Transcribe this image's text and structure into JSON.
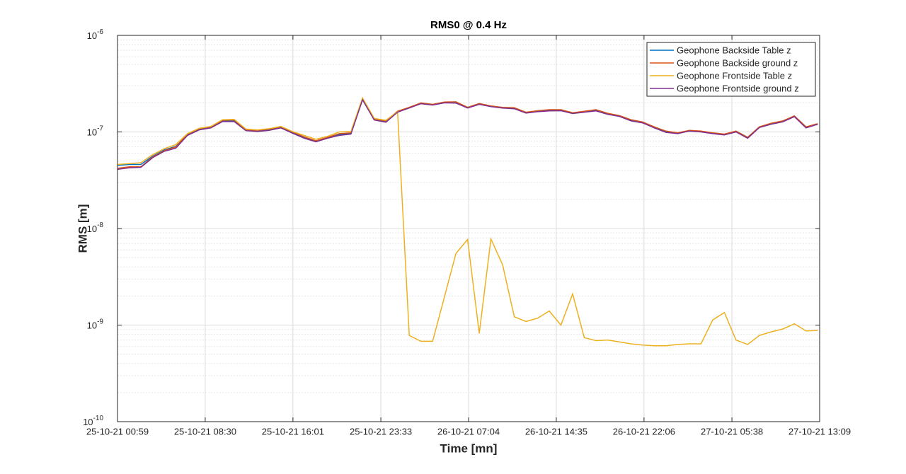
{
  "chart_data": {
    "type": "line",
    "title": "RMS0 @ 0.4 Hz",
    "x_label": "Time [mn]",
    "y_label": "RMS [m]",
    "log_y": true,
    "grid": true,
    "legend": "northeast",
    "x": [
      "2021-10-25T00:59",
      "2021-10-25T01:59",
      "2021-10-25T02:59",
      "2021-10-25T03:59",
      "2021-10-25T04:59",
      "2021-10-25T05:59",
      "2021-10-25T06:59",
      "2021-10-25T07:59",
      "2021-10-25T08:59",
      "2021-10-25T09:59",
      "2021-10-25T10:59",
      "2021-10-25T11:59",
      "2021-10-25T12:59",
      "2021-10-25T13:59",
      "2021-10-25T14:59",
      "2021-10-25T15:59",
      "2021-10-25T16:59",
      "2021-10-25T17:59",
      "2021-10-25T18:59",
      "2021-10-25T19:59",
      "2021-10-25T20:59",
      "2021-10-25T21:59",
      "2021-10-25T22:59",
      "2021-10-25T23:59",
      "2021-10-26T00:59",
      "2021-10-26T01:59",
      "2021-10-26T02:59",
      "2021-10-26T03:59",
      "2021-10-26T04:59",
      "2021-10-26T05:59",
      "2021-10-26T06:59",
      "2021-10-26T07:59",
      "2021-10-26T08:59",
      "2021-10-26T09:59",
      "2021-10-26T10:59",
      "2021-10-26T11:59",
      "2021-10-26T12:59",
      "2021-10-26T13:59",
      "2021-10-26T14:59",
      "2021-10-26T15:59",
      "2021-10-26T16:59",
      "2021-10-26T17:59",
      "2021-10-26T18:59",
      "2021-10-26T19:59",
      "2021-10-26T20:59",
      "2021-10-26T21:59",
      "2021-10-26T22:59",
      "2021-10-26T23:59",
      "2021-10-27T00:59",
      "2021-10-27T01:59",
      "2021-10-27T02:59",
      "2021-10-27T03:59",
      "2021-10-27T04:59",
      "2021-10-27T05:59",
      "2021-10-27T06:59",
      "2021-10-27T07:59",
      "2021-10-27T08:59",
      "2021-10-27T09:59",
      "2021-10-27T10:59",
      "2021-10-27T11:59",
      "2021-10-27T12:59"
    ],
    "xlim": [
      "2021-10-25T00:59",
      "2021-10-27T13:09"
    ],
    "xticks": [
      {
        "value": "2021-10-25T00:59",
        "label": "25-10-21 00:59"
      },
      {
        "value": "2021-10-25T08:30",
        "label": "25-10-21 08:30"
      },
      {
        "value": "2021-10-25T16:01",
        "label": "25-10-21 16:01"
      },
      {
        "value": "2021-10-25T23:33",
        "label": "25-10-21 23:33"
      },
      {
        "value": "2021-10-26T07:04",
        "label": "26-10-21 07:04"
      },
      {
        "value": "2021-10-26T14:35",
        "label": "26-10-21 14:35"
      },
      {
        "value": "2021-10-26T22:06",
        "label": "26-10-21 22:06"
      },
      {
        "value": "2021-10-27T05:38",
        "label": "27-10-21 05:38"
      },
      {
        "value": "2021-10-27T13:09",
        "label": "27-10-21 13:09"
      }
    ],
    "ylim": [
      1e-10,
      1e-06
    ],
    "yticks": [
      {
        "value": 1e-10,
        "label": "10",
        "exponent": "-10"
      },
      {
        "value": 1e-09,
        "label": "10",
        "exponent": "-9"
      },
      {
        "value": 1e-08,
        "label": "10",
        "exponent": "-8"
      },
      {
        "value": 1e-07,
        "label": "10",
        "exponent": "-7"
      },
      {
        "value": 1e-06,
        "label": "10",
        "exponent": "-6"
      }
    ],
    "series": [
      {
        "name": "Geophone Backside Table z",
        "color": "#0072BD",
        "values": [
          4.5e-08,
          4.6e-08,
          4.6e-08,
          5.6e-08,
          6.5e-08,
          7.1e-08,
          9.4e-08,
          1.07e-07,
          1.12e-07,
          1.3e-07,
          1.3e-07,
          1.05e-07,
          1.03e-07,
          1.06e-07,
          1.12e-07,
          9.9e-08,
          8.8e-08,
          8e-08,
          8.7e-08,
          9.4e-08,
          9.7e-08,
          2.19e-07,
          1.34e-07,
          1.28e-07,
          1.62e-07,
          1.79e-07,
          1.98e-07,
          1.91e-07,
          2.01e-07,
          2e-07,
          1.79e-07,
          1.95e-07,
          1.85e-07,
          1.79e-07,
          1.76e-07,
          1.59e-07,
          1.64e-07,
          1.67e-07,
          1.67e-07,
          1.56e-07,
          1.62e-07,
          1.67e-07,
          1.54e-07,
          1.46e-07,
          1.32e-07,
          1.26e-07,
          1.12e-07,
          1e-07,
          9.7e-08,
          1.03e-07,
          1.01e-07,
          9.7e-08,
          9.4e-08,
          1.02e-07,
          8.8e-08,
          1.12e-07,
          1.21e-07,
          1.28e-07,
          1.46e-07,
          1.12e-07,
          1.21e-07
        ]
      },
      {
        "name": "Geophone Backside ground z",
        "color": "#D95319",
        "values": [
          4.2e-08,
          4.35e-08,
          4.35e-08,
          5.5e-08,
          6.4e-08,
          7e-08,
          9.5e-08,
          1.08e-07,
          1.13e-07,
          1.32e-07,
          1.33e-07,
          1.05e-07,
          1.04e-07,
          1.07e-07,
          1.13e-07,
          1e-07,
          8.9e-08,
          8.1e-08,
          8.8e-08,
          9.6e-08,
          9.8e-08,
          2.2e-07,
          1.36e-07,
          1.3e-07,
          1.64e-07,
          1.8e-07,
          2e-07,
          1.93e-07,
          2.04e-07,
          2.05e-07,
          1.8e-07,
          1.97e-07,
          1.86e-07,
          1.8e-07,
          1.78e-07,
          1.6e-07,
          1.66e-07,
          1.7e-07,
          1.7e-07,
          1.58e-07,
          1.64e-07,
          1.7e-07,
          1.56e-07,
          1.48e-07,
          1.34e-07,
          1.27e-07,
          1.13e-07,
          1.02e-07,
          9.8e-08,
          1.04e-07,
          1.02e-07,
          9.8e-08,
          9.5e-08,
          1.02e-07,
          8.8e-08,
          1.13e-07,
          1.23e-07,
          1.3e-07,
          1.47e-07,
          1.13e-07,
          1.22e-07
        ]
      },
      {
        "name": "Geophone Frontside Table z",
        "color": "#EDB120",
        "values": [
          4.6e-08,
          4.7e-08,
          4.8e-08,
          5.8e-08,
          6.7e-08,
          7.4e-08,
          9.6e-08,
          1.09e-07,
          1.14e-07,
          1.34e-07,
          1.35e-07,
          1.07e-07,
          1.05e-07,
          1.08e-07,
          1.14e-07,
          1.01e-07,
          9.2e-08,
          8.4e-08,
          9e-08,
          1e-07,
          1.01e-07,
          2.25e-07,
          1.38e-07,
          1.32e-07,
          1.62e-07,
          7.8e-10,
          6.8e-10,
          6.8e-10,
          1.93e-09,
          5.5e-09,
          7.7e-09,
          8.2e-10,
          7.8e-09,
          4.2e-09,
          1.22e-09,
          1.09e-09,
          1.18e-09,
          1.4e-09,
          1e-09,
          2.1e-09,
          7.4e-10,
          6.9e-10,
          7e-10,
          6.7e-10,
          6.4e-10,
          6.2e-10,
          6.1e-10,
          6.1e-10,
          6.3e-10,
          6.4e-10,
          6.4e-10,
          1.13e-09,
          1.35e-09,
          7e-10,
          6.3e-10,
          7.8e-10,
          8.5e-10,
          9.1e-10,
          1.03e-09,
          8.7e-10,
          8.8e-10
        ]
      },
      {
        "name": "Geophone Frontside ground z",
        "color": "#7E2F8E",
        "values": [
          4.1e-08,
          4.25e-08,
          4.3e-08,
          5.4e-08,
          6.3e-08,
          6.8e-08,
          9.2e-08,
          1.05e-07,
          1.1e-07,
          1.28e-07,
          1.28e-07,
          1.03e-07,
          1.01e-07,
          1.04e-07,
          1.1e-07,
          9.7e-08,
          8.6e-08,
          7.9e-08,
          8.6e-08,
          9.2e-08,
          9.5e-08,
          2.15e-07,
          1.33e-07,
          1.26e-07,
          1.6e-07,
          1.77e-07,
          1.96e-07,
          1.9e-07,
          2e-07,
          1.99e-07,
          1.77e-07,
          1.93e-07,
          1.83e-07,
          1.77e-07,
          1.74e-07,
          1.57e-07,
          1.62e-07,
          1.65e-07,
          1.66e-07,
          1.55e-07,
          1.6e-07,
          1.65e-07,
          1.52e-07,
          1.45e-07,
          1.3e-07,
          1.24e-07,
          1.1e-07,
          9.9e-08,
          9.6e-08,
          1.02e-07,
          1e-07,
          9.6e-08,
          9.3e-08,
          1e-07,
          8.6e-08,
          1.11e-07,
          1.2e-07,
          1.27e-07,
          1.44e-07,
          1.1e-07,
          1.2e-07
        ]
      }
    ]
  }
}
